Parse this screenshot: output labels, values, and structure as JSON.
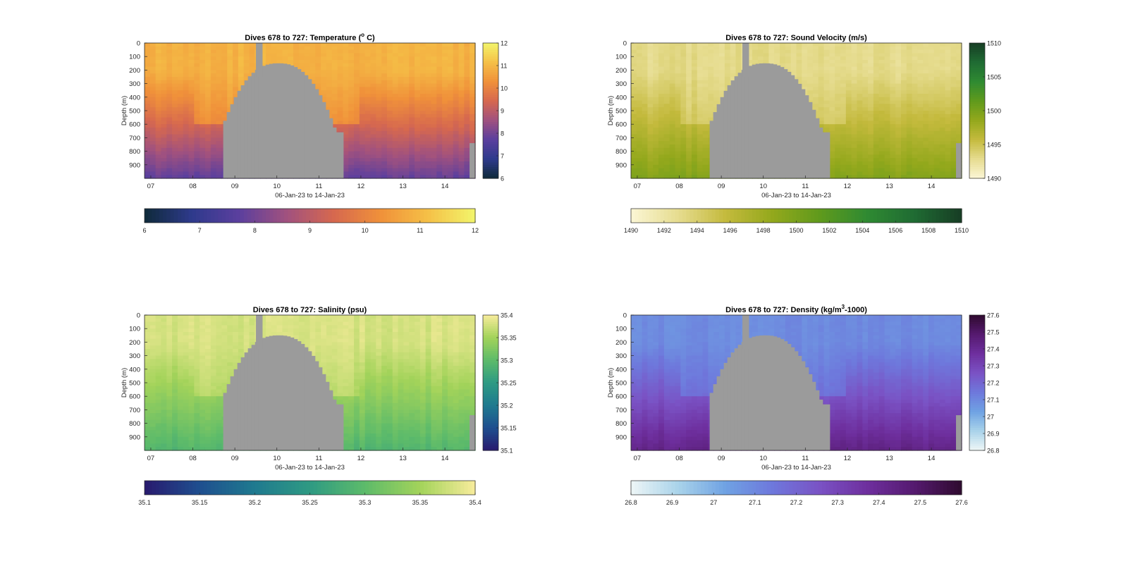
{
  "figure": {
    "background": "#ffffff"
  },
  "chart_data": [
    {
      "type": "heatmap",
      "title": "Dives 678 to 727: Temperature (° C)",
      "title_main": "Dives 678 to 727: Temperature (",
      "title_sup": "o",
      "title_tail": " C)",
      "ylabel": "Depth (m)",
      "xlabel": "06-Jan-23 to 14-Jan-23",
      "x_ticks": [
        "07",
        "08",
        "09",
        "10",
        "11",
        "12",
        "13",
        "14"
      ],
      "y_ticks": [
        "0",
        "100",
        "200",
        "300",
        "400",
        "500",
        "600",
        "700",
        "800",
        "900"
      ],
      "ylim": [
        0,
        1000
      ],
      "clim": [
        6,
        12
      ],
      "colorbar_ticks": [
        "6",
        "7",
        "8",
        "9",
        "10",
        "11",
        "12"
      ],
      "colormap": [
        "#0f2a3a",
        "#2e3a8c",
        "#5b3f9e",
        "#a0517f",
        "#d6684f",
        "#f0913a",
        "#f5c047",
        "#f2f56b"
      ],
      "surface_value": 10.9,
      "deep_value": 7.8,
      "seabed_color": "#9b9b9b"
    },
    {
      "type": "heatmap",
      "title": "Dives 678 to 727: Sound Velocity (m/s)",
      "title_main": "Dives 678 to 727: Sound Velocity (m/s)",
      "title_sup": "",
      "title_tail": "",
      "ylabel": "Depth (m)",
      "xlabel": "06-Jan-23 to 14-Jan-23",
      "x_ticks": [
        "07",
        "08",
        "09",
        "10",
        "11",
        "12",
        "13",
        "14"
      ],
      "y_ticks": [
        "0",
        "100",
        "200",
        "300",
        "400",
        "500",
        "600",
        "700",
        "800",
        "900"
      ],
      "ylim": [
        0,
        1000
      ],
      "clim": [
        1490,
        1510
      ],
      "colorbar_ticks": [
        "1490",
        "1495",
        "1500",
        "1505",
        "1510"
      ],
      "horizontal_colorbar_ticks": [
        "1490",
        "1492",
        "1494",
        "1496",
        "1498",
        "1500",
        "1502",
        "1504",
        "1506",
        "1508",
        "1510"
      ],
      "colormap": [
        "#fbf6d5",
        "#e6dc8f",
        "#c4ba3d",
        "#93a81c",
        "#5f9a1c",
        "#2f8a32",
        "#1f6b33",
        "#173d24"
      ],
      "surface_value": 1493,
      "deep_value": 1499.5,
      "seabed_color": "#9b9b9b"
    },
    {
      "type": "heatmap",
      "title": "Dives 678 to 727: Salinity (psu)",
      "title_main": "Dives 678 to 727: Salinity (psu)",
      "title_sup": "",
      "title_tail": "",
      "ylabel": "Depth (m)",
      "xlabel": "06-Jan-23 to 14-Jan-23",
      "x_ticks": [
        "07",
        "08",
        "09",
        "10",
        "11",
        "12",
        "13",
        "14"
      ],
      "y_ticks": [
        "0",
        "100",
        "200",
        "300",
        "400",
        "500",
        "600",
        "700",
        "800",
        "900"
      ],
      "ylim": [
        0,
        1000
      ],
      "clim": [
        35.1,
        35.4
      ],
      "colorbar_ticks": [
        "35.1",
        "35.15",
        "35.2",
        "35.25",
        "35.3",
        "35.35",
        "35.4"
      ],
      "colormap": [
        "#281a6e",
        "#1f4f8f",
        "#1f7a8f",
        "#2e9a83",
        "#5dbb6a",
        "#a3d35a",
        "#f8ec9c"
      ],
      "surface_value": 35.38,
      "deep_value": 35.29,
      "seabed_color": "#9b9b9b"
    },
    {
      "type": "heatmap",
      "title": "Dives 678 to 727: Density (kg/m³-1000)",
      "title_main": "Dives 678 to 727: Density (kg/m",
      "title_sup": "3",
      "title_tail": "-1000)",
      "ylabel": "Depth (m)",
      "xlabel": "06-Jan-23 to 14-Jan-23",
      "x_ticks": [
        "07",
        "08",
        "09",
        "10",
        "11",
        "12",
        "13",
        "14"
      ],
      "y_ticks": [
        "0",
        "100",
        "200",
        "300",
        "400",
        "500",
        "600",
        "700",
        "800",
        "900"
      ],
      "ylim": [
        0,
        1000
      ],
      "clim": [
        26.8,
        27.6
      ],
      "colorbar_ticks": [
        "26.8",
        "26.9",
        "27",
        "27.1",
        "27.2",
        "27.3",
        "27.4",
        "27.5",
        "27.6"
      ],
      "colormap": [
        "#eef6f6",
        "#a9d3ea",
        "#6fa2e3",
        "#6e78dc",
        "#7a52c4",
        "#6e2f9e",
        "#551a6f",
        "#2f0a2f"
      ],
      "surface_value": 27.09,
      "deep_value": 27.43,
      "seabed_color": "#9b9b9b"
    }
  ]
}
